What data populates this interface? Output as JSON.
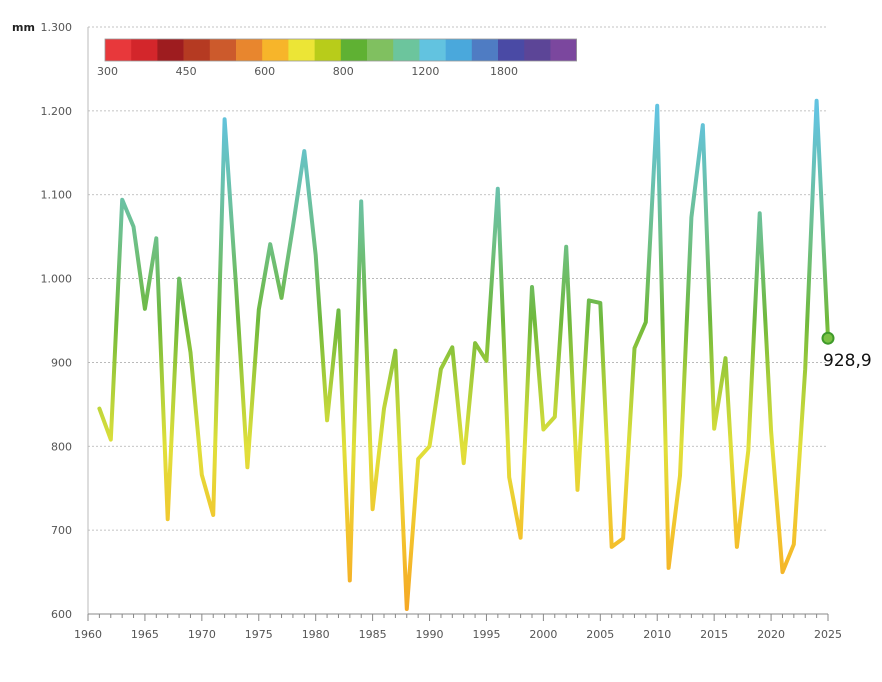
{
  "chart_data": {
    "type": "line",
    "unit_label": "mm",
    "ylim": [
      600,
      1300
    ],
    "y_ticks": [
      600,
      700,
      800,
      900,
      1000,
      1100,
      1200,
      1300
    ],
    "y_tick_labels": [
      "600",
      "700",
      "800",
      "900",
      "1.000",
      "1.100",
      "1.200",
      "1.300"
    ],
    "xlim": [
      1960,
      2025
    ],
    "x_ticks": [
      1960,
      1965,
      1970,
      1975,
      1980,
      1985,
      1990,
      1995,
      2000,
      2005,
      2010,
      2015,
      2020,
      2025
    ],
    "x_tick_labels": [
      "1960",
      "1965",
      "1970",
      "1975",
      "1980",
      "1985",
      "1990",
      "1995",
      "2000",
      "2005",
      "2010",
      "2015",
      "2020",
      "2025"
    ],
    "grid": true,
    "x": [
      1961,
      1962,
      1963,
      1964,
      1965,
      1966,
      1967,
      1968,
      1969,
      1970,
      1971,
      1972,
      1973,
      1974,
      1975,
      1976,
      1977,
      1978,
      1979,
      1980,
      1981,
      1982,
      1983,
      1984,
      1985,
      1986,
      1987,
      1988,
      1989,
      1990,
      1991,
      1992,
      1993,
      1994,
      1995,
      1996,
      1997,
      1998,
      1999,
      2000,
      2001,
      2002,
      2003,
      2004,
      2005,
      2006,
      2007,
      2008,
      2009,
      2010,
      2011,
      2012,
      2013,
      2014,
      2015,
      2016,
      2017,
      2018,
      2019,
      2020,
      2021,
      2022,
      2023,
      2024,
      2025
    ],
    "y": [
      845,
      808,
      1094,
      1062,
      964,
      1048,
      713,
      1000,
      912,
      766,
      718,
      1190,
      992,
      775,
      963,
      1041,
      977,
      1062,
      1152,
      1028,
      831,
      962,
      640,
      1092,
      725,
      845,
      914,
      606,
      785,
      800,
      892,
      918,
      780,
      923,
      902,
      1107,
      763,
      691,
      990,
      820,
      835,
      1038,
      748,
      974,
      971,
      680,
      690,
      917,
      948,
      1206,
      655,
      765,
      1073,
      1183,
      821,
      905,
      680,
      795,
      1078,
      818,
      650,
      683,
      892,
      1212,
      928.9
    ],
    "last_value_label": "928,9",
    "colorbar": {
      "colors": [
        "#e8383b",
        "#d3262b",
        "#9e1c1f",
        "#b53a22",
        "#cc5a2c",
        "#e8862e",
        "#f7b52a",
        "#ece536",
        "#b8cc1a",
        "#5fb133",
        "#80c060",
        "#6cc59d",
        "#62c3e0",
        "#4aa8dc",
        "#4f7cc3",
        "#4a4aa5",
        "#5c4597",
        "#7b479e"
      ],
      "labels": [
        {
          "text": "300",
          "index": 0
        },
        {
          "text": "450",
          "index": 3
        },
        {
          "text": "600",
          "index": 6
        },
        {
          "text": "800",
          "index": 9
        },
        {
          "text": "1200",
          "index": 12
        },
        {
          "text": "1800",
          "index": 15
        }
      ]
    },
    "line_color_stops": [
      {
        "value": 600,
        "color": "#f5a623"
      },
      {
        "value": 700,
        "color": "#f3c52e"
      },
      {
        "value": 800,
        "color": "#e0e03a"
      },
      {
        "value": 870,
        "color": "#aed03a"
      },
      {
        "value": 950,
        "color": "#6fb93c"
      },
      {
        "value": 1050,
        "color": "#6ec08a"
      },
      {
        "value": 1200,
        "color": "#62c3e0"
      }
    ]
  }
}
